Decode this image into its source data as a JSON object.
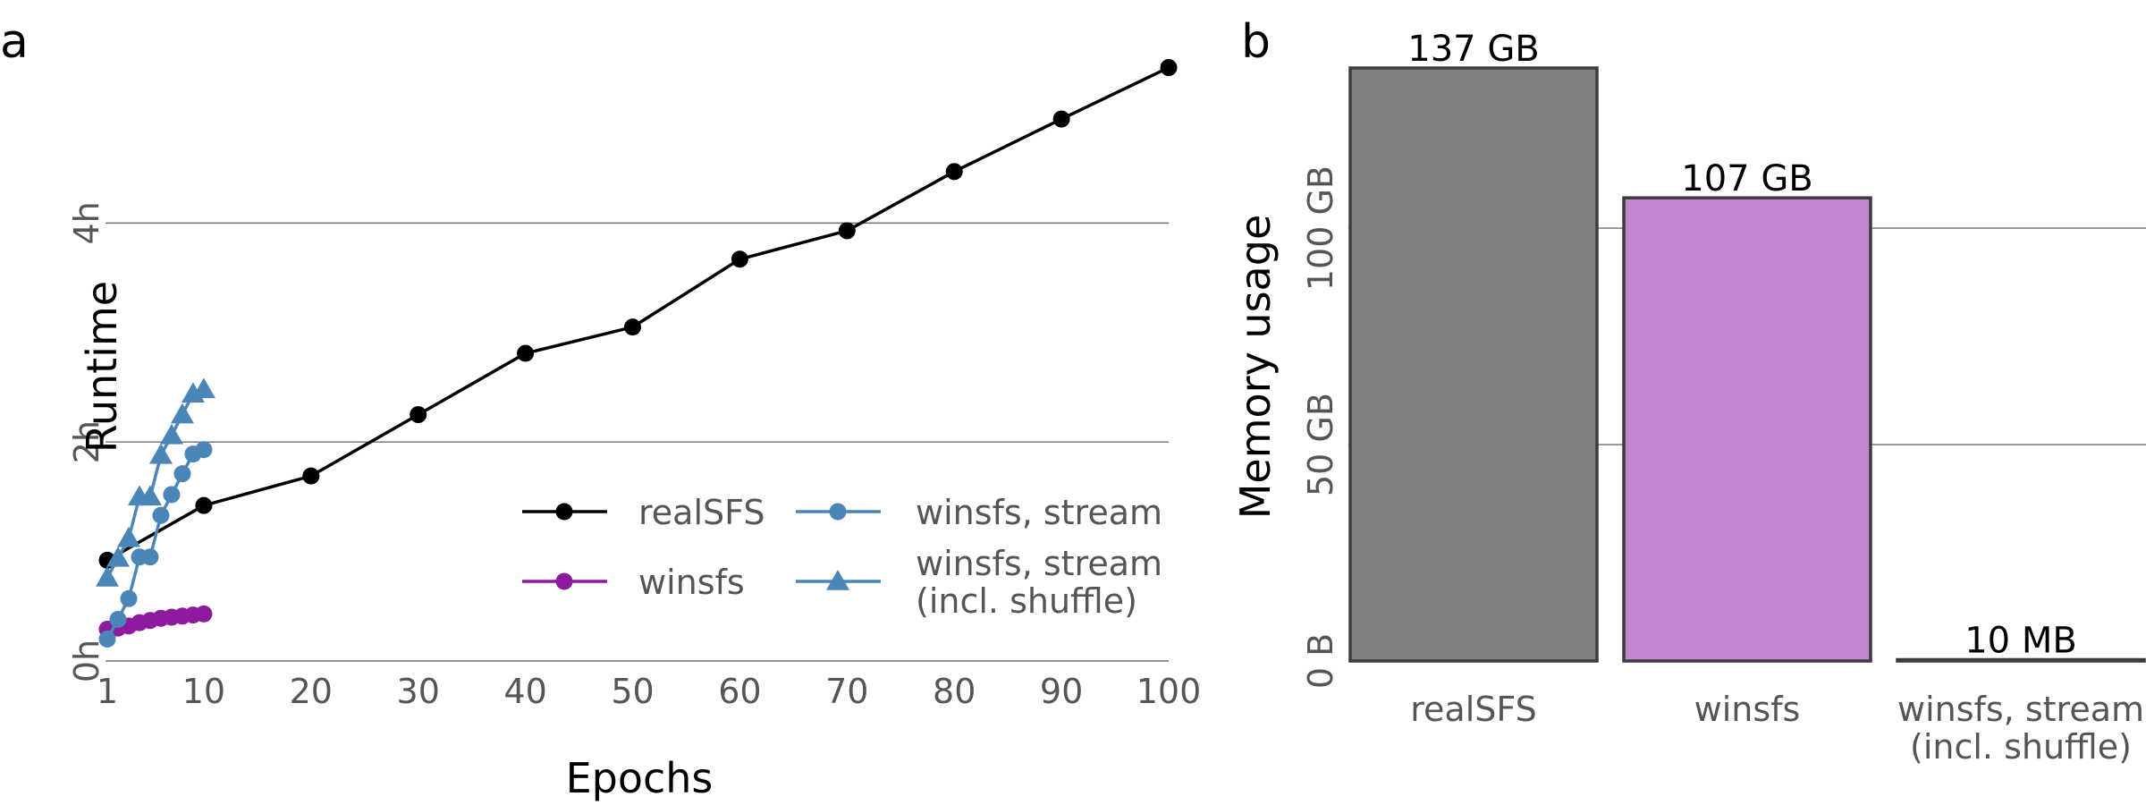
{
  "panels": {
    "a": "a",
    "b": "b"
  },
  "chart_data": [
    {
      "type": "line",
      "xlabel": "Epochs",
      "ylabel": "Runtime",
      "xticks": [
        1,
        10,
        20,
        30,
        40,
        50,
        60,
        70,
        80,
        90,
        100
      ],
      "yticks": [
        {
          "value": 0,
          "label": "0h"
        },
        {
          "value": 2,
          "label": "2h"
        },
        {
          "value": 4,
          "label": "4h"
        }
      ],
      "xlim": [
        1,
        100
      ],
      "ylim": [
        0,
        5.4
      ],
      "grid": "horizontal",
      "legend": "bottom-right",
      "series": [
        {
          "name": "realSFS",
          "color": "#000000",
          "marker": "circle",
          "x": [
            1,
            10,
            20,
            30,
            40,
            50,
            60,
            70,
            80,
            90,
            100
          ],
          "y": [
            0.92,
            1.42,
            1.69,
            2.25,
            2.81,
            3.05,
            3.67,
            3.93,
            4.47,
            4.95,
            5.42
          ]
        },
        {
          "name": "winsfs",
          "color": "#8e1a9e",
          "marker": "circle",
          "x": [
            1,
            2,
            3,
            4,
            5,
            6,
            7,
            8,
            9,
            10
          ],
          "y": [
            0.29,
            0.3,
            0.32,
            0.35,
            0.37,
            0.39,
            0.4,
            0.41,
            0.42,
            0.43
          ]
        },
        {
          "name": "winsfs, stream",
          "color": "#4a86b8",
          "marker": "circle",
          "x": [
            1,
            2,
            3,
            4,
            5,
            6,
            7,
            8,
            9,
            10
          ],
          "y": [
            0.2,
            0.38,
            0.57,
            0.95,
            0.95,
            1.33,
            1.52,
            1.71,
            1.89,
            1.93
          ]
        },
        {
          "name": "winsfs, stream\n(incl. shuffle)",
          "color": "#4a86b8",
          "marker": "triangle",
          "x": [
            1,
            2,
            3,
            4,
            5,
            6,
            7,
            8,
            9,
            10
          ],
          "y": [
            0.76,
            0.94,
            1.12,
            1.5,
            1.5,
            1.88,
            2.06,
            2.25,
            2.44,
            2.48
          ]
        }
      ]
    },
    {
      "type": "bar",
      "ylabel": "Memory usage",
      "yticks": [
        {
          "value": 0,
          "label": "0 B"
        },
        {
          "value": 50,
          "label": "50 GB"
        },
        {
          "value": 100,
          "label": "100 GB"
        }
      ],
      "ylim": [
        0,
        137
      ],
      "grid": "horizontal",
      "categories": [
        "realSFS",
        "winsfs",
        "winsfs, stream\n(incl. shuffle)"
      ],
      "values_gb": [
        137,
        107,
        0.01
      ],
      "value_labels": [
        "137 GB",
        "107 GB",
        "10 MB"
      ],
      "colors": [
        "#808080",
        "#c586d1",
        "#808080"
      ]
    }
  ]
}
